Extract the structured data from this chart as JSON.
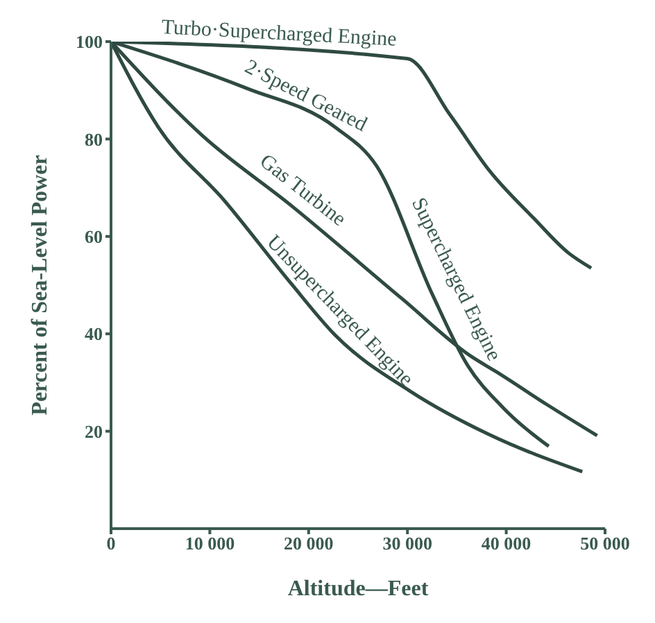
{
  "chart_data": {
    "type": "line",
    "xlabel": "Altitude—Feet",
    "ylabel": "Percent of Sea-Level Power",
    "xlim": [
      0,
      50000
    ],
    "ylim": [
      0,
      100
    ],
    "xticks": [
      0,
      {
        "value": 10000,
        "label": "10 000"
      },
      {
        "value": 20000,
        "label": "20 000"
      },
      {
        "value": 30000,
        "label": "30 000"
      },
      {
        "value": 40000,
        "label": "40 000"
      },
      {
        "value": 50000,
        "label": "50 000"
      }
    ],
    "yticks": [
      20,
      40,
      60,
      80,
      100
    ],
    "grid": false,
    "marker": "none",
    "line_style": "solid",
    "series": [
      {
        "color": "#2f4a42",
        "x": [
          0,
          30000,
          34300,
          38300,
          42800,
          46300,
          48600
        ],
        "values": [
          100,
          96.5,
          85,
          73.5,
          63.7,
          56.6,
          53.5
        ]
      },
      {
        "color": "#2f4a42",
        "x": [
          0,
          13750,
          22700,
          26900,
          32500,
          36100,
          39600,
          44300
        ],
        "values": [
          100,
          90.4,
          82.4,
          74.4,
          48.2,
          33.5,
          25,
          16.9
        ]
      },
      {
        "color": "#2f4a42",
        "x": [
          0,
          9300,
          18200,
          29400,
          36500,
          39000,
          44100,
          49200
        ],
        "values": [
          100,
          80.6,
          66.4,
          47.3,
          35.3,
          32.2,
          25.5,
          19.1
        ]
      },
      {
        "color": "#2f4a42",
        "x": [
          0,
          4800,
          11500,
          18200,
          22700,
          30300,
          38300,
          47700
        ],
        "values": [
          100,
          82.4,
          67.3,
          50.4,
          39.7,
          28.2,
          19.3,
          11.7
        ]
      }
    ],
    "annotations": [
      {
        "text": "Turbo·Supercharged Engine",
        "x": 17000,
        "y": 98
      },
      {
        "text": "2·Speed Geared",
        "x": 19100,
        "y": 85.5
      },
      {
        "text": "Supercharged Engine",
        "x": 32000,
        "y": 50.5
      },
      {
        "text": "Gas Turbine",
        "x": 18200,
        "y": 66.4
      },
      {
        "text": "Unsupercharged Engine",
        "x": 21800,
        "y": 42
      }
    ]
  }
}
